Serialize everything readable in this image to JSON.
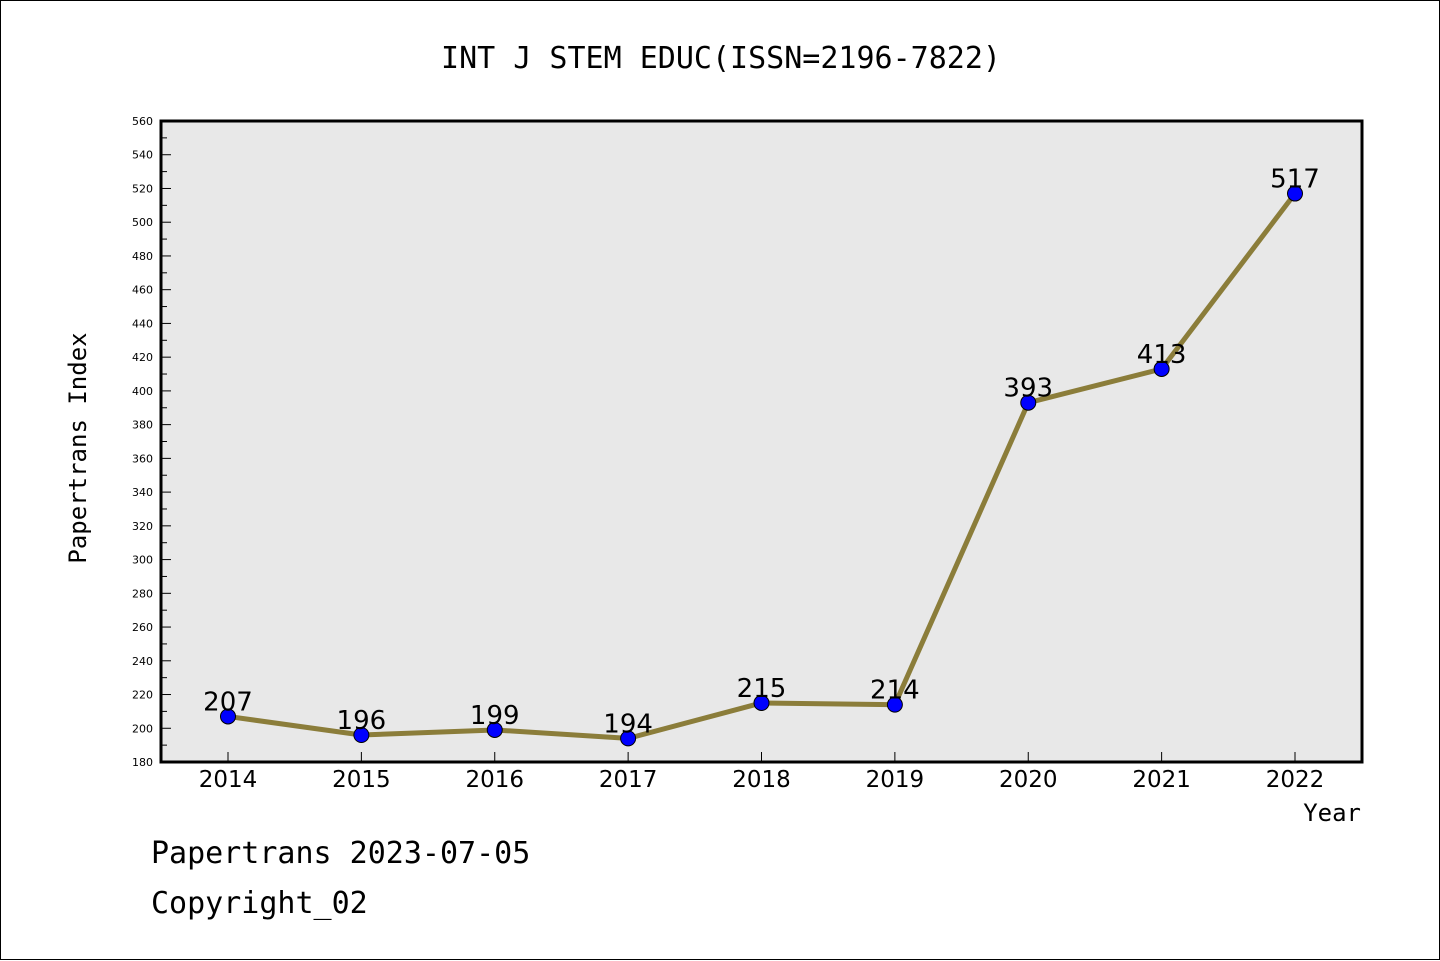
{
  "chart_data": {
    "type": "line",
    "title": "INT J STEM EDUC(ISSN=2196-7822)",
    "xlabel": "Year",
    "ylabel": "Papertrans Index",
    "categories": [
      "2014",
      "2015",
      "2016",
      "2017",
      "2018",
      "2019",
      "2020",
      "2021",
      "2022"
    ],
    "values": [
      207,
      196,
      199,
      194,
      215,
      214,
      393,
      413,
      517
    ],
    "data_labels": [
      "207",
      "196",
      "199",
      "194",
      "215",
      "214",
      "393",
      "413",
      "517"
    ],
    "ylim": [
      180,
      560
    ],
    "yticks": [
      "180",
      "200",
      "220",
      "240",
      "260",
      "280",
      "300",
      "320",
      "340",
      "360",
      "380",
      "400",
      "420",
      "440",
      "460",
      "480",
      "500",
      "520",
      "540",
      "560"
    ],
    "grid": false,
    "colors": {
      "line": "#8b7d3a",
      "marker": "#0000ff",
      "plot_background": "#e8e8e8"
    }
  },
  "footer": {
    "line1": "Papertrans 2023-07-05",
    "line2": "Copyright_02"
  }
}
